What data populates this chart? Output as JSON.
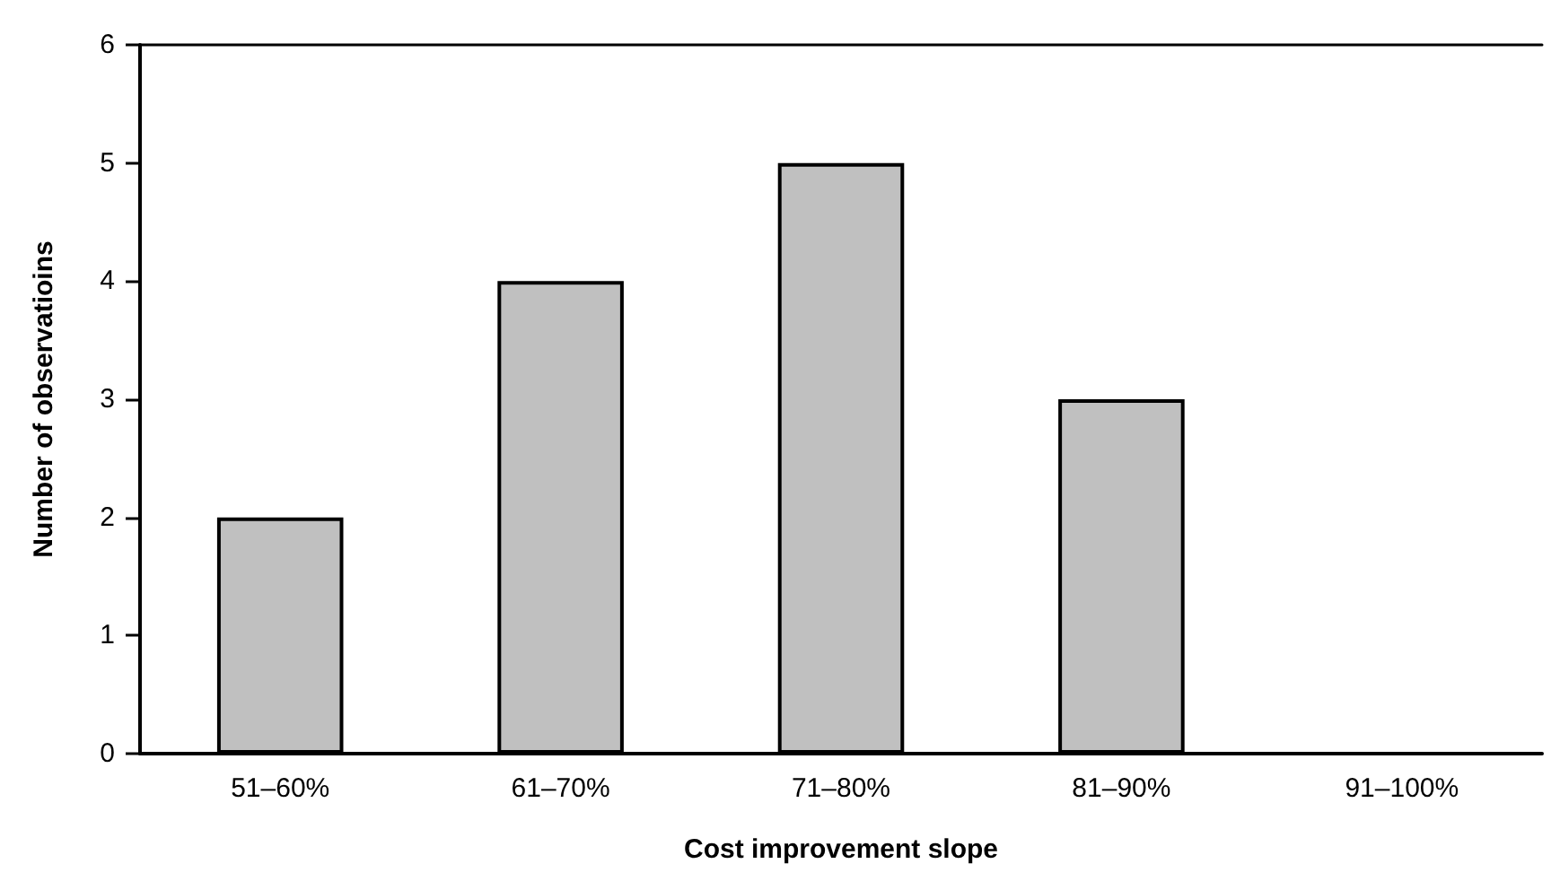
{
  "chart_data": {
    "type": "bar",
    "xlabel": "Cost improvement slope",
    "ylabel": "Number of observatioins",
    "categories": [
      "51–60%",
      "61–70%",
      "71–80%",
      "81–90%",
      "91–100%"
    ],
    "values": [
      2,
      4,
      5,
      3,
      0
    ],
    "color": "#c0c0c0",
    "ylim": [
      0,
      6
    ],
    "yticks": [
      0,
      1,
      2,
      3,
      4,
      5,
      6
    ],
    "grid": false
  }
}
